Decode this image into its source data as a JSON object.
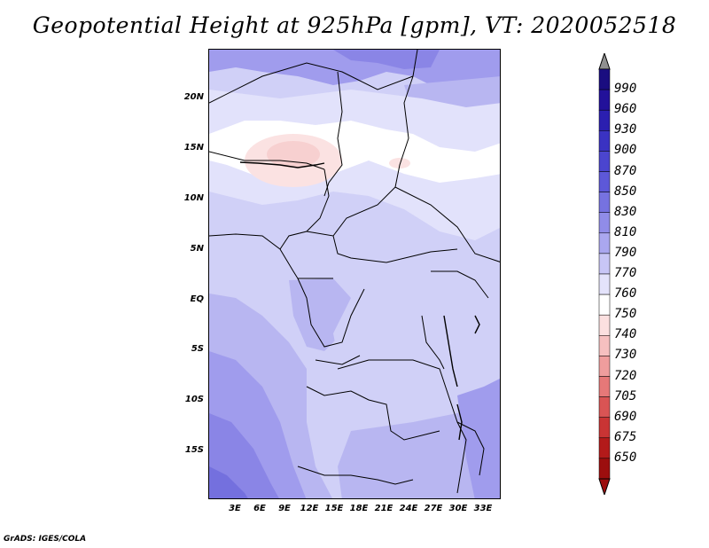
{
  "title": "Geopotential Height at 925hPa [gpm], VT: 2020052518",
  "footer": "GrADS: IGES/COLA",
  "y_axis": [
    "20N",
    "15N",
    "10N",
    "5N",
    "EQ",
    "5S",
    "10S",
    "15S"
  ],
  "x_axis": [
    "3E",
    "6E",
    "9E",
    "12E",
    "15E",
    "18E",
    "21E",
    "24E",
    "27E",
    "30E",
    "33E"
  ],
  "colorbar": {
    "levels": [
      "990",
      "960",
      "930",
      "900",
      "870",
      "850",
      "830",
      "810",
      "790",
      "770",
      "760",
      "750",
      "740",
      "730",
      "720",
      "705",
      "690",
      "675",
      "650"
    ],
    "colors": [
      "#1a0d80",
      "#22119a",
      "#2b1fb0",
      "#3a32c2",
      "#4b45cf",
      "#5d58d8",
      "#7672e0",
      "#908ce8",
      "#aaa7ef",
      "#c8c6f6",
      "#e4e3fb",
      "#ffffff",
      "#fce0e0",
      "#f6c0c0",
      "#ef9d9d",
      "#e67878",
      "#d95454",
      "#c93434",
      "#b31a1a",
      "#9c0e0e"
    ],
    "top_arrow_color": "#909090",
    "bottom_arrow_color": "#9c0e0e"
  },
  "map_colors": {
    "c770": "#e2e2fb",
    "c790": "#d0d0f7",
    "c810": "#b8b6f1",
    "c830": "#a09ced",
    "c850": "#8a85e6",
    "c870": "#7470de",
    "white": "#ffffff",
    "pink": "#fbe2e2",
    "pink2": "#f7d0d0"
  }
}
